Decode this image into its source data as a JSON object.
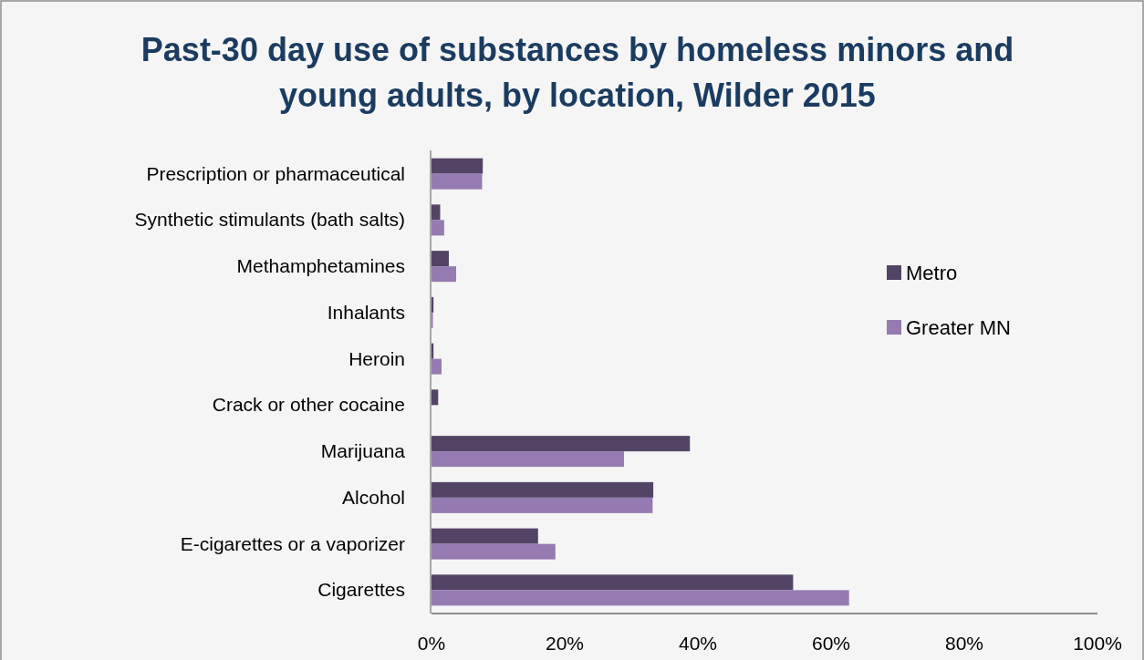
{
  "chart_data": {
    "type": "bar",
    "orientation": "horizontal",
    "title": "Past-30 day use of substances by homeless minors and young adults, by location, Wilder 2015",
    "categories": [
      "Prescription or pharmaceutical",
      "Synthetic stimulants (bath salts)",
      "Methamphetamines",
      "Inhalants",
      "Heroin",
      "Crack or other cocaine",
      "Marijuana",
      "Alcohol",
      "E-cigarettes or a vaporizer",
      "Cigarettes"
    ],
    "series": [
      {
        "name": "Metro",
        "color": "#534466",
        "values": [
          7.7,
          1.3,
          2.6,
          0.3,
          0.3,
          1.0,
          38.8,
          33.3,
          16.0,
          54.3
        ]
      },
      {
        "name": "Greater MN",
        "color": "#957bb1",
        "values": [
          7.6,
          1.9,
          3.7,
          0.2,
          1.5,
          0,
          28.9,
          33.2,
          18.6,
          62.7
        ]
      }
    ],
    "xlim": [
      0,
      100
    ],
    "xticks": [
      {
        "value": 0,
        "label": "0%"
      },
      {
        "value": 20,
        "label": "20%"
      },
      {
        "value": 40,
        "label": "40%"
      },
      {
        "value": 60,
        "label": "60%"
      },
      {
        "value": 80,
        "label": "80%"
      },
      {
        "value": 100,
        "label": "100%"
      }
    ],
    "grid": false,
    "legend": "right"
  }
}
